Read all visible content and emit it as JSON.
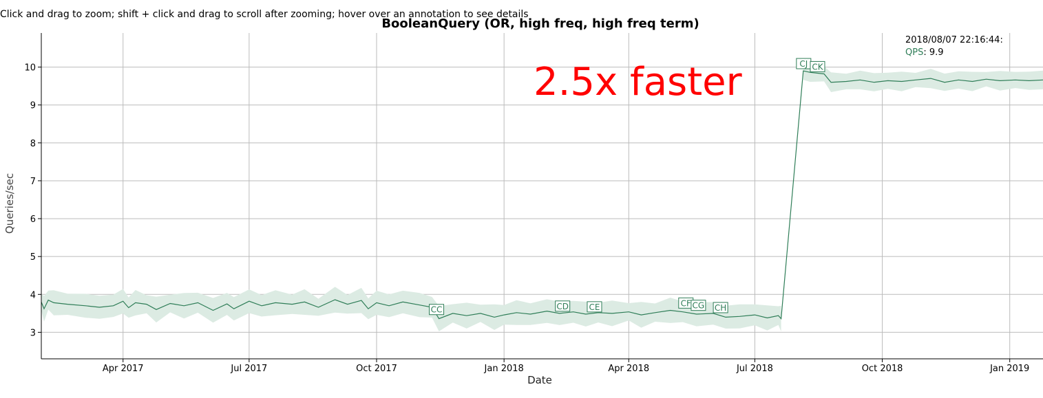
{
  "instructions": "Click and drag to zoom; shift + click and drag to scroll after zooming; hover over an annotation to see details",
  "legend": {
    "timestamp": "2018/08/07 22:16:44:",
    "series_label": "QPS",
    "series_value": "9.9"
  },
  "overlay_text": "2.5x faster",
  "colors": {
    "line": "#2e7d57",
    "band": "#dcebe3",
    "grid": "#bbbbbb",
    "annotation_text": "#ff0000"
  },
  "chart_data": {
    "type": "line",
    "title": "BooleanQuery (OR, high freq, high freq term)",
    "xlabel": "Date",
    "ylabel": "Queries/sec",
    "xlim": [
      "2017-02-01",
      "2019-01-25"
    ],
    "ylim": [
      2.3,
      10.9
    ],
    "y_ticks": [
      3,
      4,
      5,
      6,
      7,
      8,
      9,
      10
    ],
    "x_ticks": [
      {
        "date": "2017-04-01",
        "label": "Apr 2017"
      },
      {
        "date": "2017-07-01",
        "label": "Jul 2017"
      },
      {
        "date": "2017-10-01",
        "label": "Oct 2017"
      },
      {
        "date": "2018-01-01",
        "label": "Jan 2018"
      },
      {
        "date": "2018-04-01",
        "label": "Apr 2018"
      },
      {
        "date": "2018-07-01",
        "label": "Jul 2018"
      },
      {
        "date": "2018-10-01",
        "label": "Oct 2018"
      },
      {
        "date": "2019-01-01",
        "label": "Jan 2019"
      }
    ],
    "grid": true,
    "series": [
      {
        "points": [
          [
            "2017-02-01",
            3.8
          ],
          [
            "2017-02-03",
            3.62
          ],
          [
            "2017-02-06",
            3.85
          ],
          [
            "2017-02-10",
            3.78
          ],
          [
            "2017-02-20",
            3.74
          ],
          [
            "2017-03-05",
            3.7
          ],
          [
            "2017-03-15",
            3.66
          ],
          [
            "2017-03-25",
            3.7
          ],
          [
            "2017-04-01",
            3.82
          ],
          [
            "2017-04-05",
            3.65
          ],
          [
            "2017-04-10",
            3.78
          ],
          [
            "2017-04-18",
            3.74
          ],
          [
            "2017-04-25",
            3.6
          ],
          [
            "2017-05-05",
            3.76
          ],
          [
            "2017-05-15",
            3.7
          ],
          [
            "2017-05-25",
            3.78
          ],
          [
            "2017-06-05",
            3.58
          ],
          [
            "2017-06-15",
            3.75
          ],
          [
            "2017-06-20",
            3.62
          ],
          [
            "2017-07-01",
            3.82
          ],
          [
            "2017-07-10",
            3.7
          ],
          [
            "2017-07-20",
            3.78
          ],
          [
            "2017-08-01",
            3.74
          ],
          [
            "2017-08-10",
            3.8
          ],
          [
            "2017-08-20",
            3.66
          ],
          [
            "2017-09-01",
            3.86
          ],
          [
            "2017-09-10",
            3.74
          ],
          [
            "2017-09-20",
            3.84
          ],
          [
            "2017-09-25",
            3.62
          ],
          [
            "2017-10-01",
            3.78
          ],
          [
            "2017-10-10",
            3.7
          ],
          [
            "2017-10-20",
            3.8
          ],
          [
            "2017-11-01",
            3.72
          ],
          [
            "2017-11-10",
            3.66
          ],
          [
            "2017-11-15",
            3.36
          ],
          [
            "2017-11-25",
            3.5
          ],
          [
            "2017-12-05",
            3.44
          ],
          [
            "2017-12-15",
            3.5
          ],
          [
            "2017-12-25",
            3.4
          ],
          [
            "2018-01-01",
            3.46
          ],
          [
            "2018-01-10",
            3.52
          ],
          [
            "2018-01-20",
            3.48
          ],
          [
            "2018-02-01",
            3.56
          ],
          [
            "2018-02-10",
            3.5
          ],
          [
            "2018-02-20",
            3.54
          ],
          [
            "2018-03-01",
            3.48
          ],
          [
            "2018-03-10",
            3.52
          ],
          [
            "2018-03-20",
            3.5
          ],
          [
            "2018-04-01",
            3.54
          ],
          [
            "2018-04-10",
            3.46
          ],
          [
            "2018-04-20",
            3.52
          ],
          [
            "2018-05-01",
            3.58
          ],
          [
            "2018-05-10",
            3.54
          ],
          [
            "2018-05-20",
            3.48
          ],
          [
            "2018-06-01",
            3.5
          ],
          [
            "2018-06-10",
            3.4
          ],
          [
            "2018-06-20",
            3.42
          ],
          [
            "2018-07-01",
            3.46
          ],
          [
            "2018-07-10",
            3.38
          ],
          [
            "2018-07-18",
            3.44
          ],
          [
            "2018-07-20",
            3.36
          ],
          [
            "2018-08-05",
            9.9
          ],
          [
            "2018-08-10",
            9.86
          ],
          [
            "2018-08-20",
            9.82
          ],
          [
            "2018-08-25",
            9.6
          ],
          [
            "2018-09-05",
            9.62
          ],
          [
            "2018-09-15",
            9.66
          ],
          [
            "2018-09-25",
            9.6
          ],
          [
            "2018-10-05",
            9.64
          ],
          [
            "2018-10-15",
            9.62
          ],
          [
            "2018-10-25",
            9.66
          ],
          [
            "2018-11-05",
            9.7
          ],
          [
            "2018-11-15",
            9.6
          ],
          [
            "2018-11-25",
            9.66
          ],
          [
            "2018-12-05",
            9.62
          ],
          [
            "2018-12-15",
            9.68
          ],
          [
            "2018-12-25",
            9.64
          ],
          [
            "2019-01-05",
            9.66
          ],
          [
            "2019-01-15",
            9.64
          ],
          [
            "2019-01-25",
            9.66
          ]
        ]
      }
    ],
    "annotations": [
      {
        "label": "CC",
        "date": "2017-11-13",
        "value": 3.43
      },
      {
        "label": "CD",
        "date": "2018-02-12",
        "value": 3.52
      },
      {
        "label": "CE",
        "date": "2018-03-07",
        "value": 3.5
      },
      {
        "label": "CF",
        "date": "2018-05-12",
        "value": 3.6
      },
      {
        "label": "CG",
        "date": "2018-05-21",
        "value": 3.54
      },
      {
        "label": "CH",
        "date": "2018-06-06",
        "value": 3.48
      },
      {
        "label": "CJ",
        "date": "2018-08-05",
        "value": 9.92
      },
      {
        "label": "CK",
        "date": "2018-08-15",
        "value": 9.84
      }
    ]
  }
}
